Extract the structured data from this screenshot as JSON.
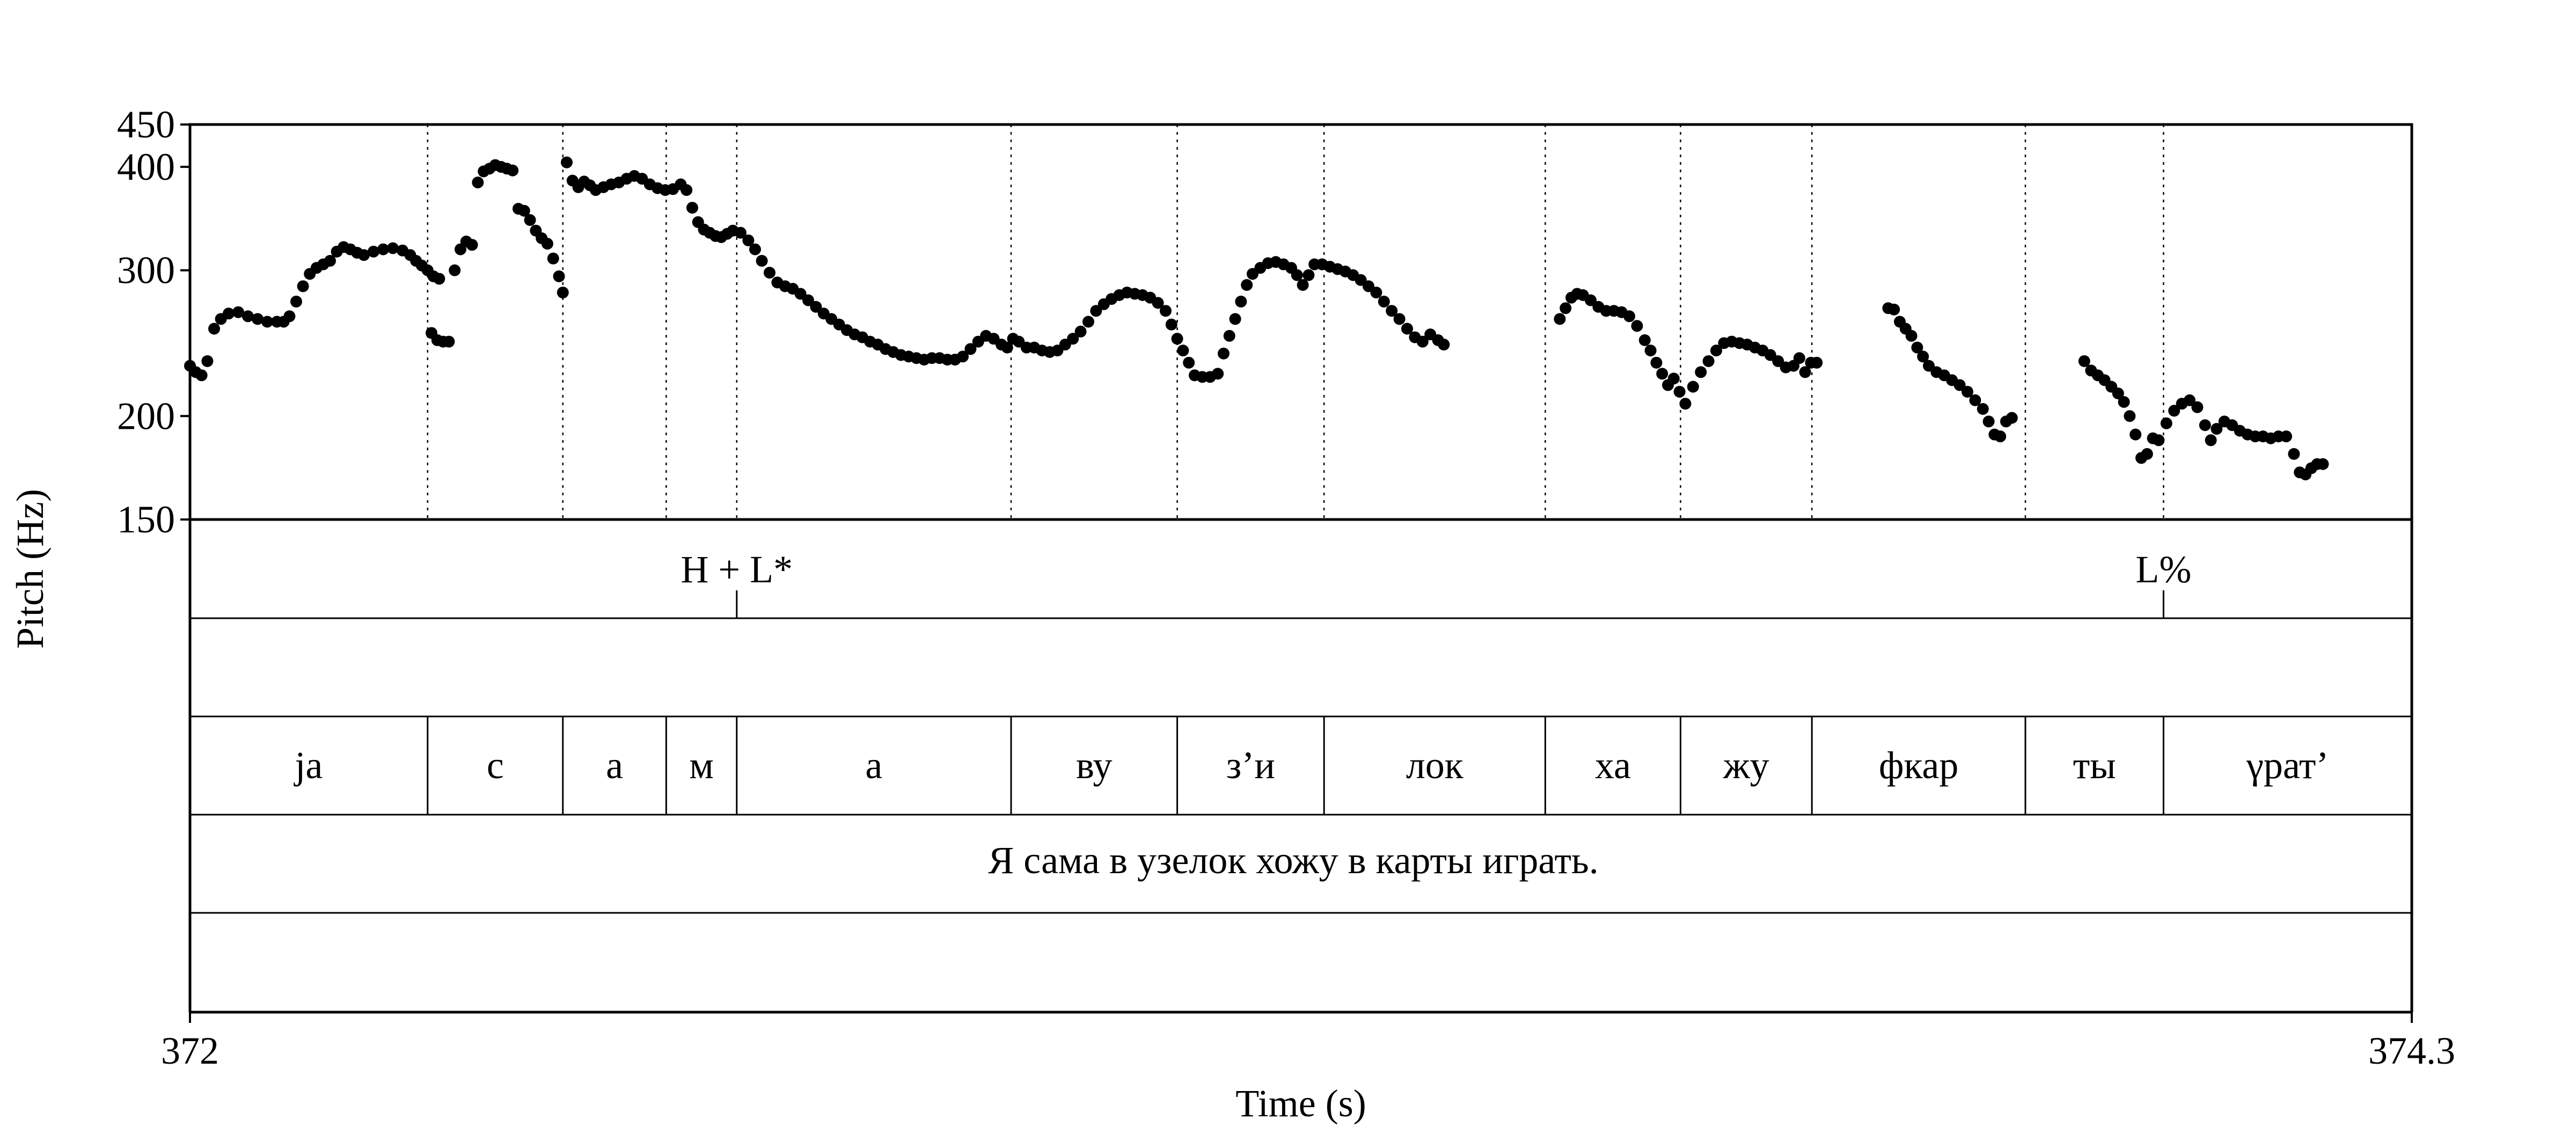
{
  "chart_data": {
    "type": "scatter",
    "xlabel": "Time (s)",
    "ylabel": "Pitch (Hz)",
    "xlim": [
      372,
      374.3
    ],
    "ylim": [
      150,
      450
    ],
    "x_tick_labels": [
      "372",
      "374.3"
    ],
    "yticks": [
      150,
      200,
      300,
      400,
      450
    ],
    "y_tick_labels": [
      "150",
      "200",
      "300",
      "400",
      "450"
    ],
    "grid": false,
    "boundaries": [
      372.246,
      372.386,
      372.493,
      372.566,
      372.85,
      373.022,
      373.174,
      373.403,
      373.543,
      373.679,
      373.9,
      374.043
    ],
    "tones": [
      {
        "time": 372.566,
        "label": "H + L*"
      },
      {
        "time": 374.043,
        "label": "L%"
      }
    ],
    "syllables": [
      {
        "start": 372.0,
        "end": 372.246,
        "label": "ja"
      },
      {
        "start": 372.246,
        "end": 372.386,
        "label": "с"
      },
      {
        "start": 372.386,
        "end": 372.493,
        "label": "а"
      },
      {
        "start": 372.493,
        "end": 372.566,
        "label": "м"
      },
      {
        "start": 372.566,
        "end": 372.85,
        "label": "а"
      },
      {
        "start": 372.85,
        "end": 373.022,
        "label": "ву"
      },
      {
        "start": 373.022,
        "end": 373.174,
        "label": "з’и"
      },
      {
        "start": 373.174,
        "end": 373.403,
        "label": "лок"
      },
      {
        "start": 373.403,
        "end": 373.543,
        "label": "ха"
      },
      {
        "start": 373.543,
        "end": 373.679,
        "label": "жу"
      },
      {
        "start": 373.679,
        "end": 373.9,
        "label": "фкар"
      },
      {
        "start": 373.9,
        "end": 374.043,
        "label": "ты"
      },
      {
        "start": 374.043,
        "end": 374.3,
        "label": "γрат’"
      }
    ],
    "sentence": "Я сама в узелок хожу в карты играть.",
    "segments": [
      [
        [
          372.0,
          230
        ],
        [
          372.006,
          226
        ],
        [
          372.012,
          224
        ],
        [
          372.018,
          233
        ],
        [
          372.025,
          255
        ],
        [
          372.032,
          262
        ],
        [
          372.04,
          266
        ],
        [
          372.05,
          267
        ],
        [
          372.06,
          264
        ],
        [
          372.07,
          262
        ],
        [
          372.08,
          260
        ],
        [
          372.09,
          260
        ],
        [
          372.097,
          260
        ],
        [
          372.103,
          264
        ],
        [
          372.11,
          275
        ],
        [
          372.117,
          287
        ],
        [
          372.124,
          297
        ],
        [
          372.131,
          302
        ],
        [
          372.138,
          305
        ],
        [
          372.145,
          308
        ],
        [
          372.152,
          316
        ],
        [
          372.159,
          320
        ],
        [
          372.166,
          318
        ],
        [
          372.173,
          315
        ],
        [
          372.18,
          313
        ],
        [
          372.19,
          316
        ],
        [
          372.2,
          318
        ],
        [
          372.21,
          319
        ],
        [
          372.22,
          317
        ],
        [
          372.228,
          313
        ],
        [
          372.234,
          308
        ],
        [
          372.24,
          304
        ],
        [
          372.246,
          300
        ],
        [
          372.252,
          295
        ],
        [
          372.258,
          293
        ]
      ],
      [
        [
          372.25,
          252
        ],
        [
          372.256,
          247
        ],
        [
          372.262,
          246
        ],
        [
          372.268,
          246
        ],
        [
          372.274,
          300
        ],
        [
          372.28,
          318
        ],
        [
          372.286,
          325
        ],
        [
          372.292,
          322
        ],
        [
          372.298,
          383
        ],
        [
          372.304,
          395
        ],
        [
          372.31,
          398
        ],
        [
          372.316,
          402
        ],
        [
          372.322,
          400
        ],
        [
          372.328,
          398
        ],
        [
          372.334,
          396
        ],
        [
          372.34,
          356
        ],
        [
          372.346,
          354
        ],
        [
          372.352,
          345
        ],
        [
          372.358,
          335
        ],
        [
          372.364,
          328
        ],
        [
          372.37,
          323
        ],
        [
          372.376,
          310
        ],
        [
          372.382,
          295
        ],
        [
          372.386,
          282
        ]
      ],
      [
        [
          372.39,
          405
        ],
        [
          372.396,
          385
        ],
        [
          372.402,
          378
        ],
        [
          372.408,
          384
        ],
        [
          372.414,
          380
        ],
        [
          372.42,
          375
        ],
        [
          372.428,
          378
        ],
        [
          372.436,
          381
        ],
        [
          372.444,
          383
        ],
        [
          372.452,
          387
        ],
        [
          372.46,
          390
        ],
        [
          372.468,
          387
        ],
        [
          372.476,
          381
        ],
        [
          372.484,
          377
        ],
        [
          372.492,
          375
        ],
        [
          372.5,
          376
        ],
        [
          372.508,
          381
        ],
        [
          372.514,
          375
        ],
        [
          372.52,
          357
        ],
        [
          372.526,
          343
        ],
        [
          372.532,
          336
        ],
        [
          372.538,
          333
        ],
        [
          372.544,
          330
        ],
        [
          372.55,
          329
        ],
        [
          372.556,
          332
        ],
        [
          372.562,
          335
        ],
        [
          372.57,
          333
        ],
        [
          372.578,
          326
        ],
        [
          372.585,
          318
        ],
        [
          372.592,
          308
        ],
        [
          372.6,
          298
        ],
        [
          372.608,
          290
        ],
        [
          372.616,
          287
        ],
        [
          372.624,
          285
        ],
        [
          372.632,
          281
        ],
        [
          372.64,
          276
        ],
        [
          372.648,
          271
        ],
        [
          372.656,
          266
        ],
        [
          372.664,
          262
        ],
        [
          372.672,
          258
        ],
        [
          372.68,
          254
        ],
        [
          372.688,
          251
        ],
        [
          372.696,
          249
        ],
        [
          372.704,
          246
        ],
        [
          372.712,
          244
        ],
        [
          372.72,
          241
        ],
        [
          372.728,
          239
        ],
        [
          372.736,
          237
        ],
        [
          372.744,
          236
        ],
        [
          372.752,
          235
        ],
        [
          372.76,
          234
        ],
        [
          372.768,
          235
        ],
        [
          372.776,
          235
        ],
        [
          372.784,
          234
        ],
        [
          372.792,
          234
        ],
        [
          372.8,
          236
        ],
        [
          372.808,
          241
        ],
        [
          372.816,
          246
        ],
        [
          372.824,
          250
        ],
        [
          372.832,
          248
        ],
        [
          372.84,
          244
        ],
        [
          372.846,
          242
        ],
        [
          372.852,
          248
        ],
        [
          372.858,
          246
        ],
        [
          372.866,
          242
        ],
        [
          372.874,
          242
        ],
        [
          372.882,
          240
        ],
        [
          372.89,
          239
        ],
        [
          372.898,
          240
        ],
        [
          372.906,
          244
        ],
        [
          372.914,
          248
        ],
        [
          372.922,
          253
        ],
        [
          372.93,
          260
        ],
        [
          372.938,
          268
        ],
        [
          372.946,
          273
        ],
        [
          372.954,
          277
        ],
        [
          372.962,
          280
        ],
        [
          372.97,
          282
        ],
        [
          372.978,
          281
        ],
        [
          372.986,
          280
        ],
        [
          372.994,
          278
        ],
        [
          373.002,
          274
        ],
        [
          373.01,
          268
        ],
        [
          373.016,
          258
        ],
        [
          373.022,
          248
        ],
        [
          373.028,
          240
        ],
        [
          373.034,
          232
        ],
        [
          373.04,
          224
        ],
        [
          373.048,
          223
        ],
        [
          373.056,
          223
        ],
        [
          373.064,
          225
        ],
        [
          373.07,
          238
        ],
        [
          373.076,
          250
        ],
        [
          373.082,
          262
        ],
        [
          373.088,
          275
        ],
        [
          373.094,
          288
        ],
        [
          373.1,
          297
        ],
        [
          373.108,
          302
        ],
        [
          373.116,
          306
        ],
        [
          373.124,
          307
        ],
        [
          373.132,
          305
        ],
        [
          373.14,
          302
        ],
        [
          373.146,
          296
        ],
        [
          373.152,
          288
        ],
        [
          373.158,
          296
        ],
        [
          373.164,
          305
        ],
        [
          373.172,
          305
        ],
        [
          373.18,
          303
        ],
        [
          373.188,
          301
        ],
        [
          373.196,
          299
        ],
        [
          373.204,
          296
        ],
        [
          373.212,
          292
        ],
        [
          373.22,
          287
        ],
        [
          373.228,
          282
        ],
        [
          373.236,
          275
        ],
        [
          373.244,
          268
        ],
        [
          373.252,
          262
        ],
        [
          373.26,
          255
        ],
        [
          373.268,
          249
        ],
        [
          373.276,
          246
        ],
        [
          373.284,
          251
        ],
        [
          373.292,
          247
        ],
        [
          373.298,
          244
        ]
      ],
      [
        [
          373.418,
          262
        ],
        [
          373.424,
          270
        ],
        [
          373.43,
          278
        ],
        [
          373.436,
          281
        ],
        [
          373.442,
          280
        ],
        [
          373.45,
          276
        ],
        [
          373.458,
          271
        ],
        [
          373.466,
          268
        ],
        [
          373.474,
          268
        ],
        [
          373.482,
          267
        ],
        [
          373.49,
          264
        ],
        [
          373.498,
          257
        ],
        [
          373.506,
          247
        ],
        [
          373.512,
          240
        ],
        [
          373.518,
          232
        ],
        [
          373.524,
          225
        ],
        [
          373.53,
          218
        ],
        [
          373.536,
          222
        ],
        [
          373.542,
          214
        ],
        [
          373.548,
          207
        ],
        [
          373.556,
          217
        ],
        [
          373.564,
          226
        ],
        [
          373.572,
          233
        ],
        [
          373.58,
          240
        ],
        [
          373.588,
          245
        ],
        [
          373.596,
          246
        ],
        [
          373.604,
          245
        ],
        [
          373.612,
          244
        ],
        [
          373.62,
          242
        ],
        [
          373.628,
          240
        ],
        [
          373.636,
          237
        ],
        [
          373.644,
          233
        ],
        [
          373.652,
          229
        ],
        [
          373.66,
          230
        ],
        [
          373.666,
          235
        ],
        [
          373.672,
          226
        ],
        [
          373.678,
          232
        ],
        [
          373.684,
          232
        ]
      ],
      [
        [
          373.758,
          270
        ],
        [
          373.764,
          269
        ],
        [
          373.77,
          260
        ],
        [
          373.776,
          255
        ],
        [
          373.782,
          250
        ],
        [
          373.788,
          242
        ],
        [
          373.794,
          236
        ],
        [
          373.8,
          230
        ],
        [
          373.808,
          226
        ],
        [
          373.816,
          224
        ],
        [
          373.824,
          221
        ],
        [
          373.832,
          218
        ],
        [
          373.84,
          214
        ],
        [
          373.848,
          209
        ],
        [
          373.856,
          204
        ],
        [
          373.862,
          197
        ],
        [
          373.868,
          190
        ],
        [
          373.874,
          189
        ],
        [
          373.88,
          197
        ],
        [
          373.886,
          199
        ]
      ],
      [
        [
          373.961,
          233
        ],
        [
          373.968,
          227
        ],
        [
          373.975,
          224
        ],
        [
          373.982,
          221
        ],
        [
          373.989,
          217
        ],
        [
          373.996,
          213
        ],
        [
          374.002,
          208
        ],
        [
          374.008,
          200
        ],
        [
          374.014,
          190
        ],
        [
          374.02,
          178
        ],
        [
          374.026,
          180
        ],
        [
          374.032,
          188
        ],
        [
          374.038,
          187
        ],
        [
          374.046,
          196
        ],
        [
          374.054,
          203
        ],
        [
          374.062,
          207
        ],
        [
          374.07,
          209
        ],
        [
          374.078,
          205
        ],
        [
          374.086,
          195
        ],
        [
          374.092,
          187
        ],
        [
          374.098,
          193
        ],
        [
          374.106,
          197
        ],
        [
          374.114,
          195
        ],
        [
          374.122,
          192
        ],
        [
          374.13,
          190
        ],
        [
          374.138,
          189
        ],
        [
          374.146,
          189
        ],
        [
          374.154,
          188
        ],
        [
          374.162,
          189
        ],
        [
          374.17,
          189
        ],
        [
          374.178,
          180
        ],
        [
          374.184,
          171
        ],
        [
          374.19,
          170
        ],
        [
          374.196,
          173
        ],
        [
          374.202,
          175
        ],
        [
          374.208,
          175
        ]
      ]
    ]
  }
}
